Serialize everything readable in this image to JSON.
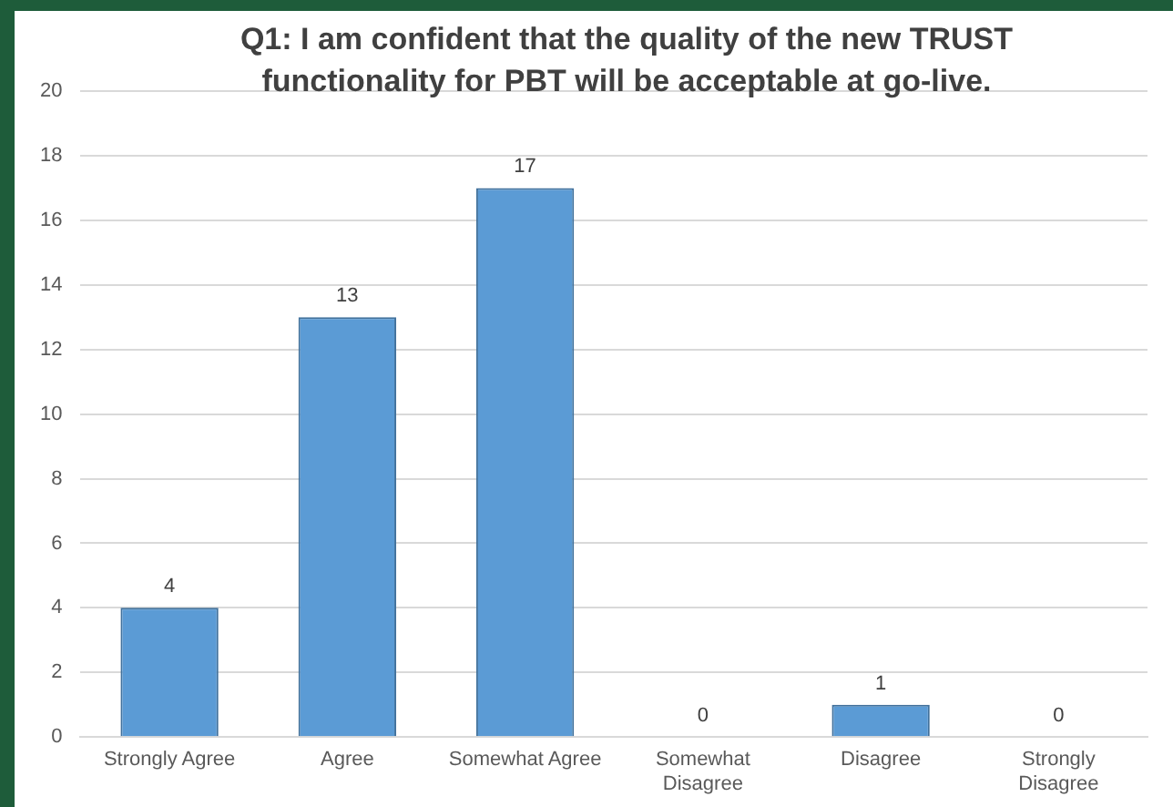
{
  "chart_data": {
    "type": "bar",
    "title": "Q1: I am confident that the quality of the new TRUST functionality for PBT will be acceptable at go-live.",
    "categories": [
      "Strongly Agree",
      "Agree",
      "Somewhat Agree",
      "Somewhat Disagree",
      "Disagree",
      "Strongly Disagree"
    ],
    "values": [
      4,
      13,
      17,
      0,
      1,
      0
    ],
    "color": "#5b9bd5",
    "ylim": [
      0,
      20
    ],
    "yticks": [
      0,
      2,
      4,
      6,
      8,
      10,
      12,
      14,
      16,
      18,
      20
    ],
    "grid": "y",
    "data_labels": true,
    "legend": false
  }
}
